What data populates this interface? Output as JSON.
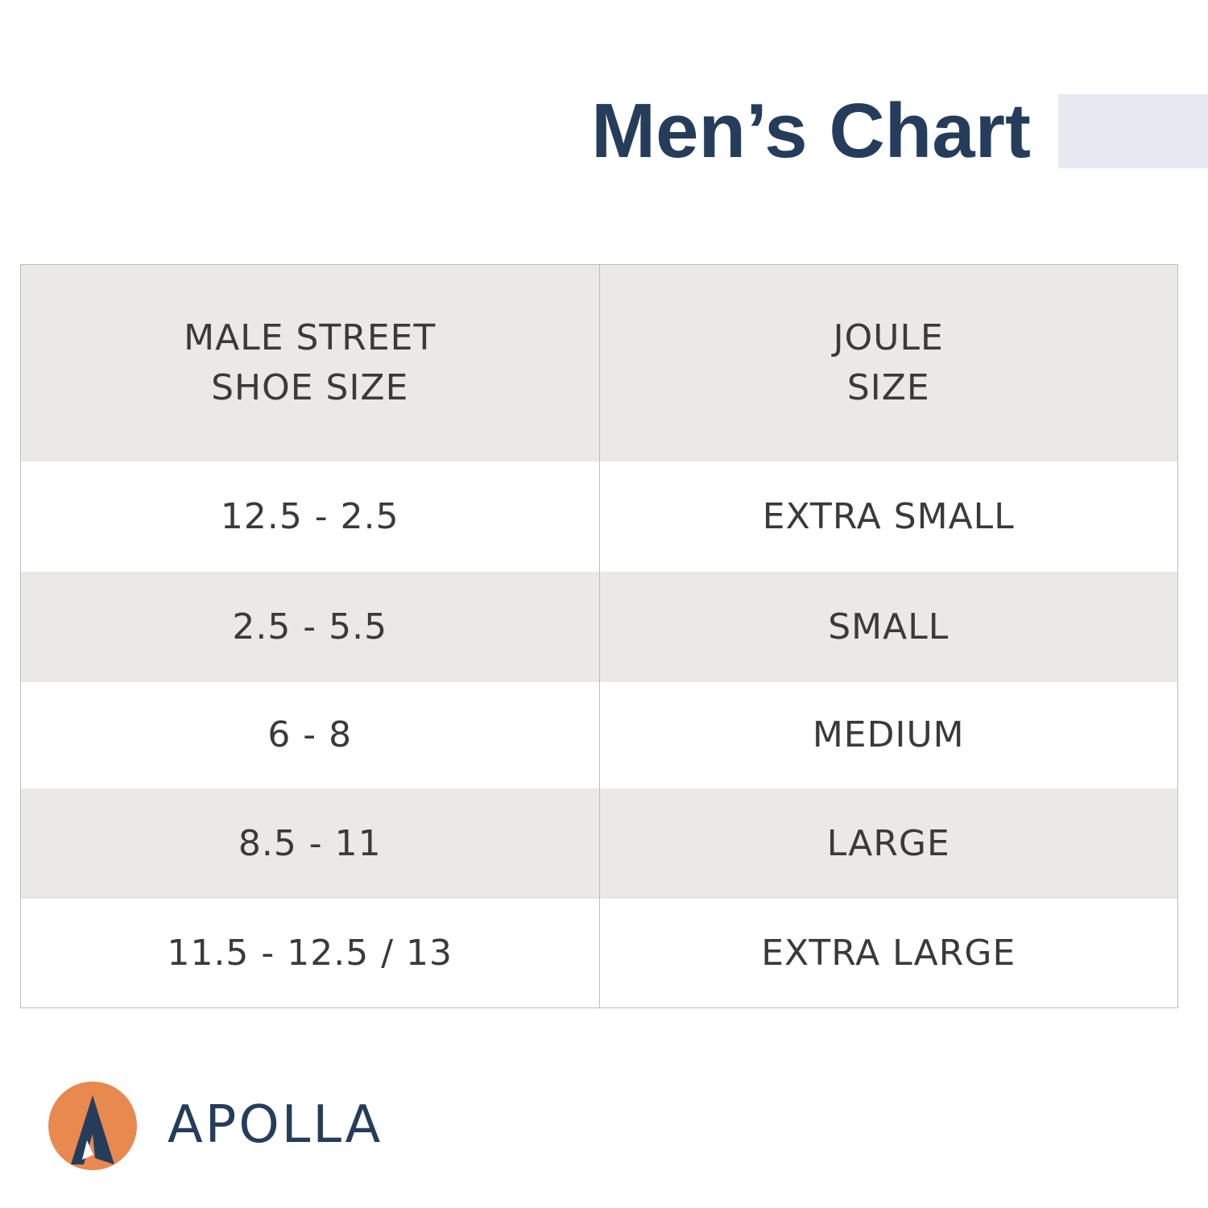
{
  "header": {
    "title": "Men’s Chart"
  },
  "table": {
    "columns": [
      [
        "MALE STREET",
        "SHOE SIZE"
      ],
      [
        "JOULE",
        "SIZE"
      ]
    ],
    "rows": [
      [
        "12.5 - 2.5",
        "EXTRA SMALL"
      ],
      [
        "2.5 - 5.5",
        "SMALL"
      ],
      [
        "6 - 8",
        "MEDIUM"
      ],
      [
        "8.5 - 11",
        "LARGE"
      ],
      [
        "11.5 - 12.5 / 13",
        "EXTRA LARGE"
      ]
    ]
  },
  "logo": {
    "text": "APOLLA"
  }
}
